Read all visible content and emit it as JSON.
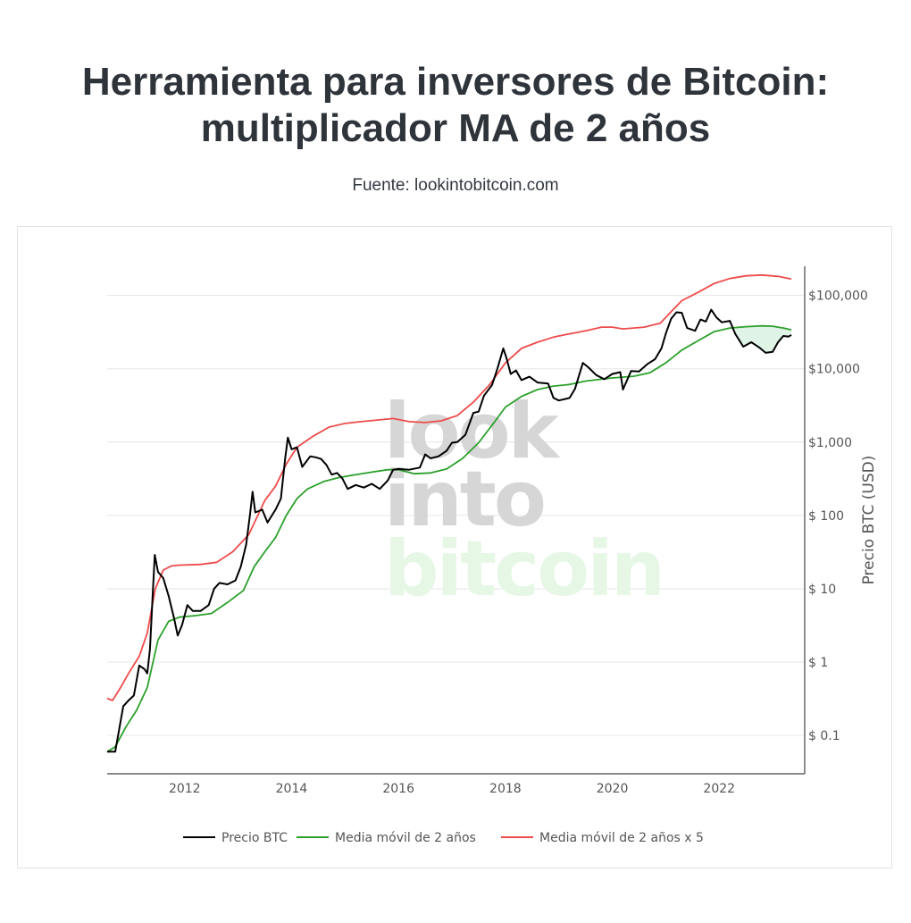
{
  "header": {
    "title": "Herramienta para inversores de Bitcoin:\nmultiplicador MA de 2 años",
    "source": "Fuente: lookintobitcoin.com"
  },
  "watermark": {
    "line1": "look",
    "line2": "into",
    "line3": "bitcoin"
  },
  "colors": {
    "price": "#000000",
    "ma": "#2ca02c",
    "ma5": "#ef4b4b",
    "grid": "#e6e6e6",
    "watermark_gray": "#d6d6d6",
    "watermark_green": "#e6f7e6",
    "fill_under_ma": "#dff3e6"
  },
  "chart_data": {
    "type": "line",
    "title": "",
    "xlabel": "",
    "ylabel": "Precio BTC (USD)",
    "yscale": "log",
    "ylim": [
      0.03,
      250000
    ],
    "xlim": [
      2010.55,
      2023.6
    ],
    "y_axis_side": "right",
    "grid": "horizontal",
    "legend_position": "bottom",
    "x_ticks": [
      {
        "value": 2012,
        "label": "2012"
      },
      {
        "value": 2014,
        "label": "2014"
      },
      {
        "value": 2016,
        "label": "2016"
      },
      {
        "value": 2018,
        "label": "2018"
      },
      {
        "value": 2020,
        "label": "2020"
      },
      {
        "value": 2022,
        "label": "2022"
      }
    ],
    "y_ticks": [
      {
        "value": 0.1,
        "label": "$ 0.1"
      },
      {
        "value": 1,
        "label": "$ 1"
      },
      {
        "value": 10,
        "label": "$ 10"
      },
      {
        "value": 100,
        "label": "$ 100"
      },
      {
        "value": 1000,
        "label": "$1,000"
      },
      {
        "value": 10000,
        "label": "$10,000"
      },
      {
        "value": 100000,
        "label": "$100,000"
      }
    ],
    "series": [
      {
        "name": "Precio BTC",
        "color": "#000000",
        "points": [
          [
            2010.55,
            0.06
          ],
          [
            2010.7,
            0.06
          ],
          [
            2010.85,
            0.25
          ],
          [
            2010.95,
            0.3
          ],
          [
            2011.05,
            0.35
          ],
          [
            2011.15,
            0.9
          ],
          [
            2011.25,
            0.8
          ],
          [
            2011.3,
            0.7
          ],
          [
            2011.35,
            1.5
          ],
          [
            2011.4,
            8.0
          ],
          [
            2011.44,
            29
          ],
          [
            2011.5,
            17
          ],
          [
            2011.6,
            14
          ],
          [
            2011.7,
            8
          ],
          [
            2011.8,
            4
          ],
          [
            2011.87,
            2.3
          ],
          [
            2011.95,
            3.2
          ],
          [
            2012.05,
            6
          ],
          [
            2012.15,
            5
          ],
          [
            2012.3,
            5
          ],
          [
            2012.45,
            6
          ],
          [
            2012.55,
            10
          ],
          [
            2012.65,
            12
          ],
          [
            2012.8,
            11.5
          ],
          [
            2012.95,
            13
          ],
          [
            2013.05,
            20
          ],
          [
            2013.15,
            40
          ],
          [
            2013.22,
            100
          ],
          [
            2013.27,
            210
          ],
          [
            2013.32,
            110
          ],
          [
            2013.45,
            120
          ],
          [
            2013.55,
            80
          ],
          [
            2013.7,
            120
          ],
          [
            2013.8,
            170
          ],
          [
            2013.88,
            600
          ],
          [
            2013.93,
            1150
          ],
          [
            2014.0,
            800
          ],
          [
            2014.1,
            850
          ],
          [
            2014.2,
            460
          ],
          [
            2014.35,
            640
          ],
          [
            2014.45,
            620
          ],
          [
            2014.55,
            590
          ],
          [
            2014.65,
            490
          ],
          [
            2014.75,
            360
          ],
          [
            2014.85,
            380
          ],
          [
            2014.95,
            320
          ],
          [
            2015.05,
            230
          ],
          [
            2015.2,
            260
          ],
          [
            2015.35,
            240
          ],
          [
            2015.5,
            270
          ],
          [
            2015.65,
            230
          ],
          [
            2015.8,
            300
          ],
          [
            2015.9,
            420
          ],
          [
            2016.0,
            430
          ],
          [
            2016.2,
            420
          ],
          [
            2016.4,
            450
          ],
          [
            2016.5,
            680
          ],
          [
            2016.6,
            600
          ],
          [
            2016.75,
            640
          ],
          [
            2016.9,
            760
          ],
          [
            2017.0,
            980
          ],
          [
            2017.1,
            1000
          ],
          [
            2017.25,
            1250
          ],
          [
            2017.4,
            2500
          ],
          [
            2017.5,
            2600
          ],
          [
            2017.6,
            4300
          ],
          [
            2017.75,
            6000
          ],
          [
            2017.85,
            10000
          ],
          [
            2017.96,
            19000
          ],
          [
            2018.02,
            14000
          ],
          [
            2018.1,
            8500
          ],
          [
            2018.2,
            9500
          ],
          [
            2018.3,
            7000
          ],
          [
            2018.45,
            7800
          ],
          [
            2018.6,
            6500
          ],
          [
            2018.8,
            6300
          ],
          [
            2018.9,
            4000
          ],
          [
            2019.0,
            3700
          ],
          [
            2019.2,
            4000
          ],
          [
            2019.3,
            5300
          ],
          [
            2019.45,
            12000
          ],
          [
            2019.55,
            10500
          ],
          [
            2019.7,
            8200
          ],
          [
            2019.85,
            7200
          ],
          [
            2020.0,
            8500
          ],
          [
            2020.15,
            9000
          ],
          [
            2020.2,
            5200
          ],
          [
            2020.35,
            9300
          ],
          [
            2020.5,
            9200
          ],
          [
            2020.65,
            11500
          ],
          [
            2020.8,
            13500
          ],
          [
            2020.92,
            19000
          ],
          [
            2021.0,
            30000
          ],
          [
            2021.1,
            48000
          ],
          [
            2021.2,
            59000
          ],
          [
            2021.3,
            58000
          ],
          [
            2021.4,
            36000
          ],
          [
            2021.55,
            33000
          ],
          [
            2021.65,
            47000
          ],
          [
            2021.75,
            44000
          ],
          [
            2021.85,
            64000
          ],
          [
            2021.95,
            50000
          ],
          [
            2022.05,
            43000
          ],
          [
            2022.2,
            45000
          ],
          [
            2022.3,
            30000
          ],
          [
            2022.45,
            20000
          ],
          [
            2022.6,
            23000
          ],
          [
            2022.75,
            19500
          ],
          [
            2022.87,
            16500
          ],
          [
            2023.0,
            17000
          ],
          [
            2023.1,
            23000
          ],
          [
            2023.2,
            28000
          ],
          [
            2023.3,
            27500
          ],
          [
            2023.35,
            29000
          ]
        ]
      },
      {
        "name": "Media móvil de 2 años",
        "color": "#2ca02c",
        "points": [
          [
            2010.55,
            0.06
          ],
          [
            2010.7,
            0.07
          ],
          [
            2010.9,
            0.13
          ],
          [
            2011.1,
            0.22
          ],
          [
            2011.3,
            0.45
          ],
          [
            2011.5,
            2.0
          ],
          [
            2011.7,
            3.6
          ],
          [
            2011.9,
            4.1
          ],
          [
            2012.2,
            4.3
          ],
          [
            2012.5,
            4.6
          ],
          [
            2012.8,
            6.5
          ],
          [
            2013.1,
            9.5
          ],
          [
            2013.3,
            20
          ],
          [
            2013.5,
            32
          ],
          [
            2013.7,
            50
          ],
          [
            2013.9,
            100
          ],
          [
            2014.1,
            170
          ],
          [
            2014.3,
            230
          ],
          [
            2014.6,
            290
          ],
          [
            2014.9,
            330
          ],
          [
            2015.2,
            360
          ],
          [
            2015.5,
            390
          ],
          [
            2015.8,
            420
          ],
          [
            2016.0,
            420
          ],
          [
            2016.3,
            370
          ],
          [
            2016.6,
            380
          ],
          [
            2016.9,
            430
          ],
          [
            2017.2,
            600
          ],
          [
            2017.5,
            980
          ],
          [
            2017.8,
            1900
          ],
          [
            2018.0,
            3000
          ],
          [
            2018.3,
            4200
          ],
          [
            2018.6,
            5200
          ],
          [
            2018.9,
            5800
          ],
          [
            2019.2,
            6100
          ],
          [
            2019.5,
            6800
          ],
          [
            2019.8,
            7200
          ],
          [
            2020.0,
            7500
          ],
          [
            2020.4,
            7900
          ],
          [
            2020.7,
            8800
          ],
          [
            2021.0,
            12000
          ],
          [
            2021.3,
            18000
          ],
          [
            2021.6,
            24000
          ],
          [
            2021.9,
            32000
          ],
          [
            2022.2,
            36000
          ],
          [
            2022.5,
            37500
          ],
          [
            2022.8,
            38500
          ],
          [
            2023.0,
            38000
          ],
          [
            2023.2,
            36000
          ],
          [
            2023.35,
            34000
          ]
        ]
      },
      {
        "name": "Media móvil de 2 años x 5",
        "color": "#ef4b4b",
        "points": [
          [
            2010.55,
            0.32
          ],
          [
            2010.65,
            0.3
          ],
          [
            2010.8,
            0.45
          ],
          [
            2010.95,
            0.7
          ],
          [
            2011.15,
            1.2
          ],
          [
            2011.3,
            2.5
          ],
          [
            2011.45,
            10
          ],
          [
            2011.6,
            18
          ],
          [
            2011.75,
            20.5
          ],
          [
            2011.9,
            21
          ],
          [
            2012.3,
            21.5
          ],
          [
            2012.6,
            23
          ],
          [
            2012.9,
            32
          ],
          [
            2013.2,
            55
          ],
          [
            2013.5,
            160
          ],
          [
            2013.7,
            250
          ],
          [
            2013.9,
            500
          ],
          [
            2014.1,
            850
          ],
          [
            2014.4,
            1200
          ],
          [
            2014.7,
            1600
          ],
          [
            2015.0,
            1800
          ],
          [
            2015.3,
            1900
          ],
          [
            2015.6,
            2000
          ],
          [
            2015.9,
            2100
          ],
          [
            2016.2,
            1900
          ],
          [
            2016.5,
            1850
          ],
          [
            2016.8,
            1950
          ],
          [
            2017.1,
            2300
          ],
          [
            2017.4,
            3500
          ],
          [
            2017.7,
            6000
          ],
          [
            2018.0,
            12000
          ],
          [
            2018.3,
            19000
          ],
          [
            2018.6,
            23000
          ],
          [
            2018.9,
            27000
          ],
          [
            2019.2,
            30000
          ],
          [
            2019.5,
            33000
          ],
          [
            2019.8,
            37000
          ],
          [
            2020.0,
            37000
          ],
          [
            2020.2,
            35000
          ],
          [
            2020.6,
            37000
          ],
          [
            2020.9,
            42000
          ],
          [
            2021.1,
            60000
          ],
          [
            2021.3,
            85000
          ],
          [
            2021.6,
            110000
          ],
          [
            2021.9,
            145000
          ],
          [
            2022.2,
            170000
          ],
          [
            2022.5,
            185000
          ],
          [
            2022.8,
            190000
          ],
          [
            2023.1,
            182000
          ],
          [
            2023.35,
            168000
          ]
        ]
      }
    ]
  }
}
